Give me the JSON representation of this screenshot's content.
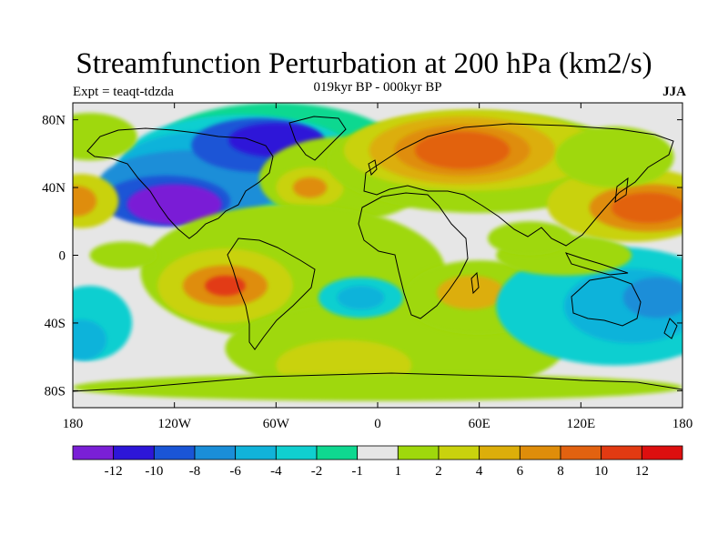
{
  "title": "Streamfunction Perturbation at 200 hPa (km2/s)",
  "subtitle_left": "Expt = teaqt-tdzda",
  "subtitle_center": "019kyr BP - 000kyr BP",
  "subtitle_right": "JJA",
  "axes": {
    "lat_labels": [
      "80N",
      "40N",
      "0",
      "40S",
      "80S"
    ],
    "lon_labels": [
      "180",
      "120W",
      "60W",
      "0",
      "60E",
      "120E",
      "180"
    ]
  },
  "colorbar": {
    "labels": [
      "-12",
      "-10",
      "-8",
      "-6",
      "-4",
      "-2",
      "-1",
      "1",
      "2",
      "4",
      "6",
      "8",
      "10",
      "12"
    ],
    "colors": [
      "#7a1fd6",
      "#2d16d8",
      "#1a55d6",
      "#1a8ed8",
      "#11b3da",
      "#10cfd0",
      "#0fd890",
      "#e6e6e6",
      "#9fd80c",
      "#c9d20d",
      "#dcae0a",
      "#df8d0a",
      "#e26210",
      "#e23a12",
      "#dd0f0f"
    ]
  },
  "map": {
    "projection": "cylindrical equidistant",
    "lon_range": [
      -180,
      180
    ],
    "lat_range": [
      -90,
      90
    ],
    "background": "#e6e6e6",
    "blobs": [
      {
        "lon": -60,
        "lat": 60,
        "rx": 75,
        "ry": 30,
        "color": "#0fd890"
      },
      {
        "lon": -80,
        "lat": 55,
        "rx": 70,
        "ry": 28,
        "color": "#10cfd0"
      },
      {
        "lon": -95,
        "lat": 50,
        "rx": 60,
        "ry": 24,
        "color": "#11b3da"
      },
      {
        "lon": -110,
        "lat": 42,
        "rx": 55,
        "ry": 20,
        "color": "#1a8ed8"
      },
      {
        "lon": -70,
        "lat": 65,
        "rx": 40,
        "ry": 16,
        "color": "#1a55d6"
      },
      {
        "lon": -125,
        "lat": 32,
        "rx": 38,
        "ry": 15,
        "color": "#1a55d6"
      },
      {
        "lon": -60,
        "lat": 68,
        "rx": 28,
        "ry": 10,
        "color": "#2d16d8"
      },
      {
        "lon": -120,
        "lat": 30,
        "rx": 28,
        "ry": 12,
        "color": "#7a1fd6"
      },
      {
        "lon": -175,
        "lat": 32,
        "rx": 22,
        "ry": 16,
        "color": "#c9d20d"
      },
      {
        "lon": -178,
        "lat": 32,
        "rx": 12,
        "ry": 9,
        "color": "#df8d0a"
      },
      {
        "lon": -170,
        "lat": 70,
        "rx": 28,
        "ry": 14,
        "color": "#9fd80c"
      },
      {
        "lon": -20,
        "lat": 45,
        "rx": 50,
        "ry": 25,
        "color": "#9fd80c"
      },
      {
        "lon": -40,
        "lat": 40,
        "rx": 20,
        "ry": 12,
        "color": "#c9d20d"
      },
      {
        "lon": -40,
        "lat": 40,
        "rx": 10,
        "ry": 6,
        "color": "#df8d0a"
      },
      {
        "lon": 60,
        "lat": 55,
        "rx": 90,
        "ry": 30,
        "color": "#9fd80c"
      },
      {
        "lon": 55,
        "lat": 62,
        "rx": 75,
        "ry": 24,
        "color": "#c9d20d"
      },
      {
        "lon": 50,
        "lat": 62,
        "rx": 55,
        "ry": 20,
        "color": "#dcae0a"
      },
      {
        "lon": 50,
        "lat": 62,
        "rx": 40,
        "ry": 15,
        "color": "#df8d0a"
      },
      {
        "lon": 50,
        "lat": 62,
        "rx": 28,
        "ry": 11,
        "color": "#e26210"
      },
      {
        "lon": 150,
        "lat": 30,
        "rx": 50,
        "ry": 22,
        "color": "#c9d20d"
      },
      {
        "lon": 160,
        "lat": 28,
        "rx": 35,
        "ry": 14,
        "color": "#df8d0a"
      },
      {
        "lon": 160,
        "lat": 28,
        "rx": 22,
        "ry": 9,
        "color": "#e26210"
      },
      {
        "lon": 140,
        "lat": 58,
        "rx": 35,
        "ry": 18,
        "color": "#9fd80c"
      },
      {
        "lon": -50,
        "lat": -10,
        "rx": 90,
        "ry": 40,
        "color": "#9fd80c"
      },
      {
        "lon": -90,
        "lat": -18,
        "rx": 40,
        "ry": 22,
        "color": "#c9d20d"
      },
      {
        "lon": -90,
        "lat": -18,
        "rx": 25,
        "ry": 12,
        "color": "#df8d0a"
      },
      {
        "lon": -90,
        "lat": -18,
        "rx": 12,
        "ry": 6,
        "color": "#e23a12"
      },
      {
        "lon": 10,
        "lat": -55,
        "rx": 100,
        "ry": 28,
        "color": "#9fd80c"
      },
      {
        "lon": -20,
        "lat": -65,
        "rx": 40,
        "ry": 15,
        "color": "#c9d20d"
      },
      {
        "lon": 60,
        "lat": -25,
        "rx": 45,
        "ry": 22,
        "color": "#9fd80c"
      },
      {
        "lon": 55,
        "lat": -22,
        "rx": 20,
        "ry": 10,
        "color": "#dcae0a"
      },
      {
        "lon": -10,
        "lat": -25,
        "rx": 25,
        "ry": 12,
        "color": "#10cfd0"
      },
      {
        "lon": -10,
        "lat": -25,
        "rx": 14,
        "ry": 7,
        "color": "#11b3da"
      },
      {
        "lon": 140,
        "lat": -30,
        "rx": 70,
        "ry": 35,
        "color": "#10cfd0"
      },
      {
        "lon": 150,
        "lat": -30,
        "rx": 40,
        "ry": 22,
        "color": "#11b3da"
      },
      {
        "lon": 165,
        "lat": -25,
        "rx": 20,
        "ry": 12,
        "color": "#1a8ed8"
      },
      {
        "lon": -170,
        "lat": -40,
        "rx": 25,
        "ry": 22,
        "color": "#10cfd0"
      },
      {
        "lon": -175,
        "lat": -50,
        "rx": 15,
        "ry": 12,
        "color": "#11b3da"
      },
      {
        "lon": 110,
        "lat": 0,
        "rx": 40,
        "ry": 12,
        "color": "#9fd80c"
      },
      {
        "lon": 0,
        "lat": -78,
        "rx": 180,
        "ry": 8,
        "color": "#9fd80c"
      },
      {
        "lon": -150,
        "lat": 0,
        "rx": 20,
        "ry": 8,
        "color": "#9fd80c"
      },
      {
        "lon": 90,
        "lat": 10,
        "rx": 25,
        "ry": 10,
        "color": "#9fd80c"
      }
    ],
    "coast_features": [
      "north-america",
      "south-america",
      "greenland",
      "africa",
      "eurasia",
      "australia",
      "antarctica",
      "madagascar",
      "japan",
      "indonesia",
      "uk",
      "new-zealand"
    ]
  }
}
